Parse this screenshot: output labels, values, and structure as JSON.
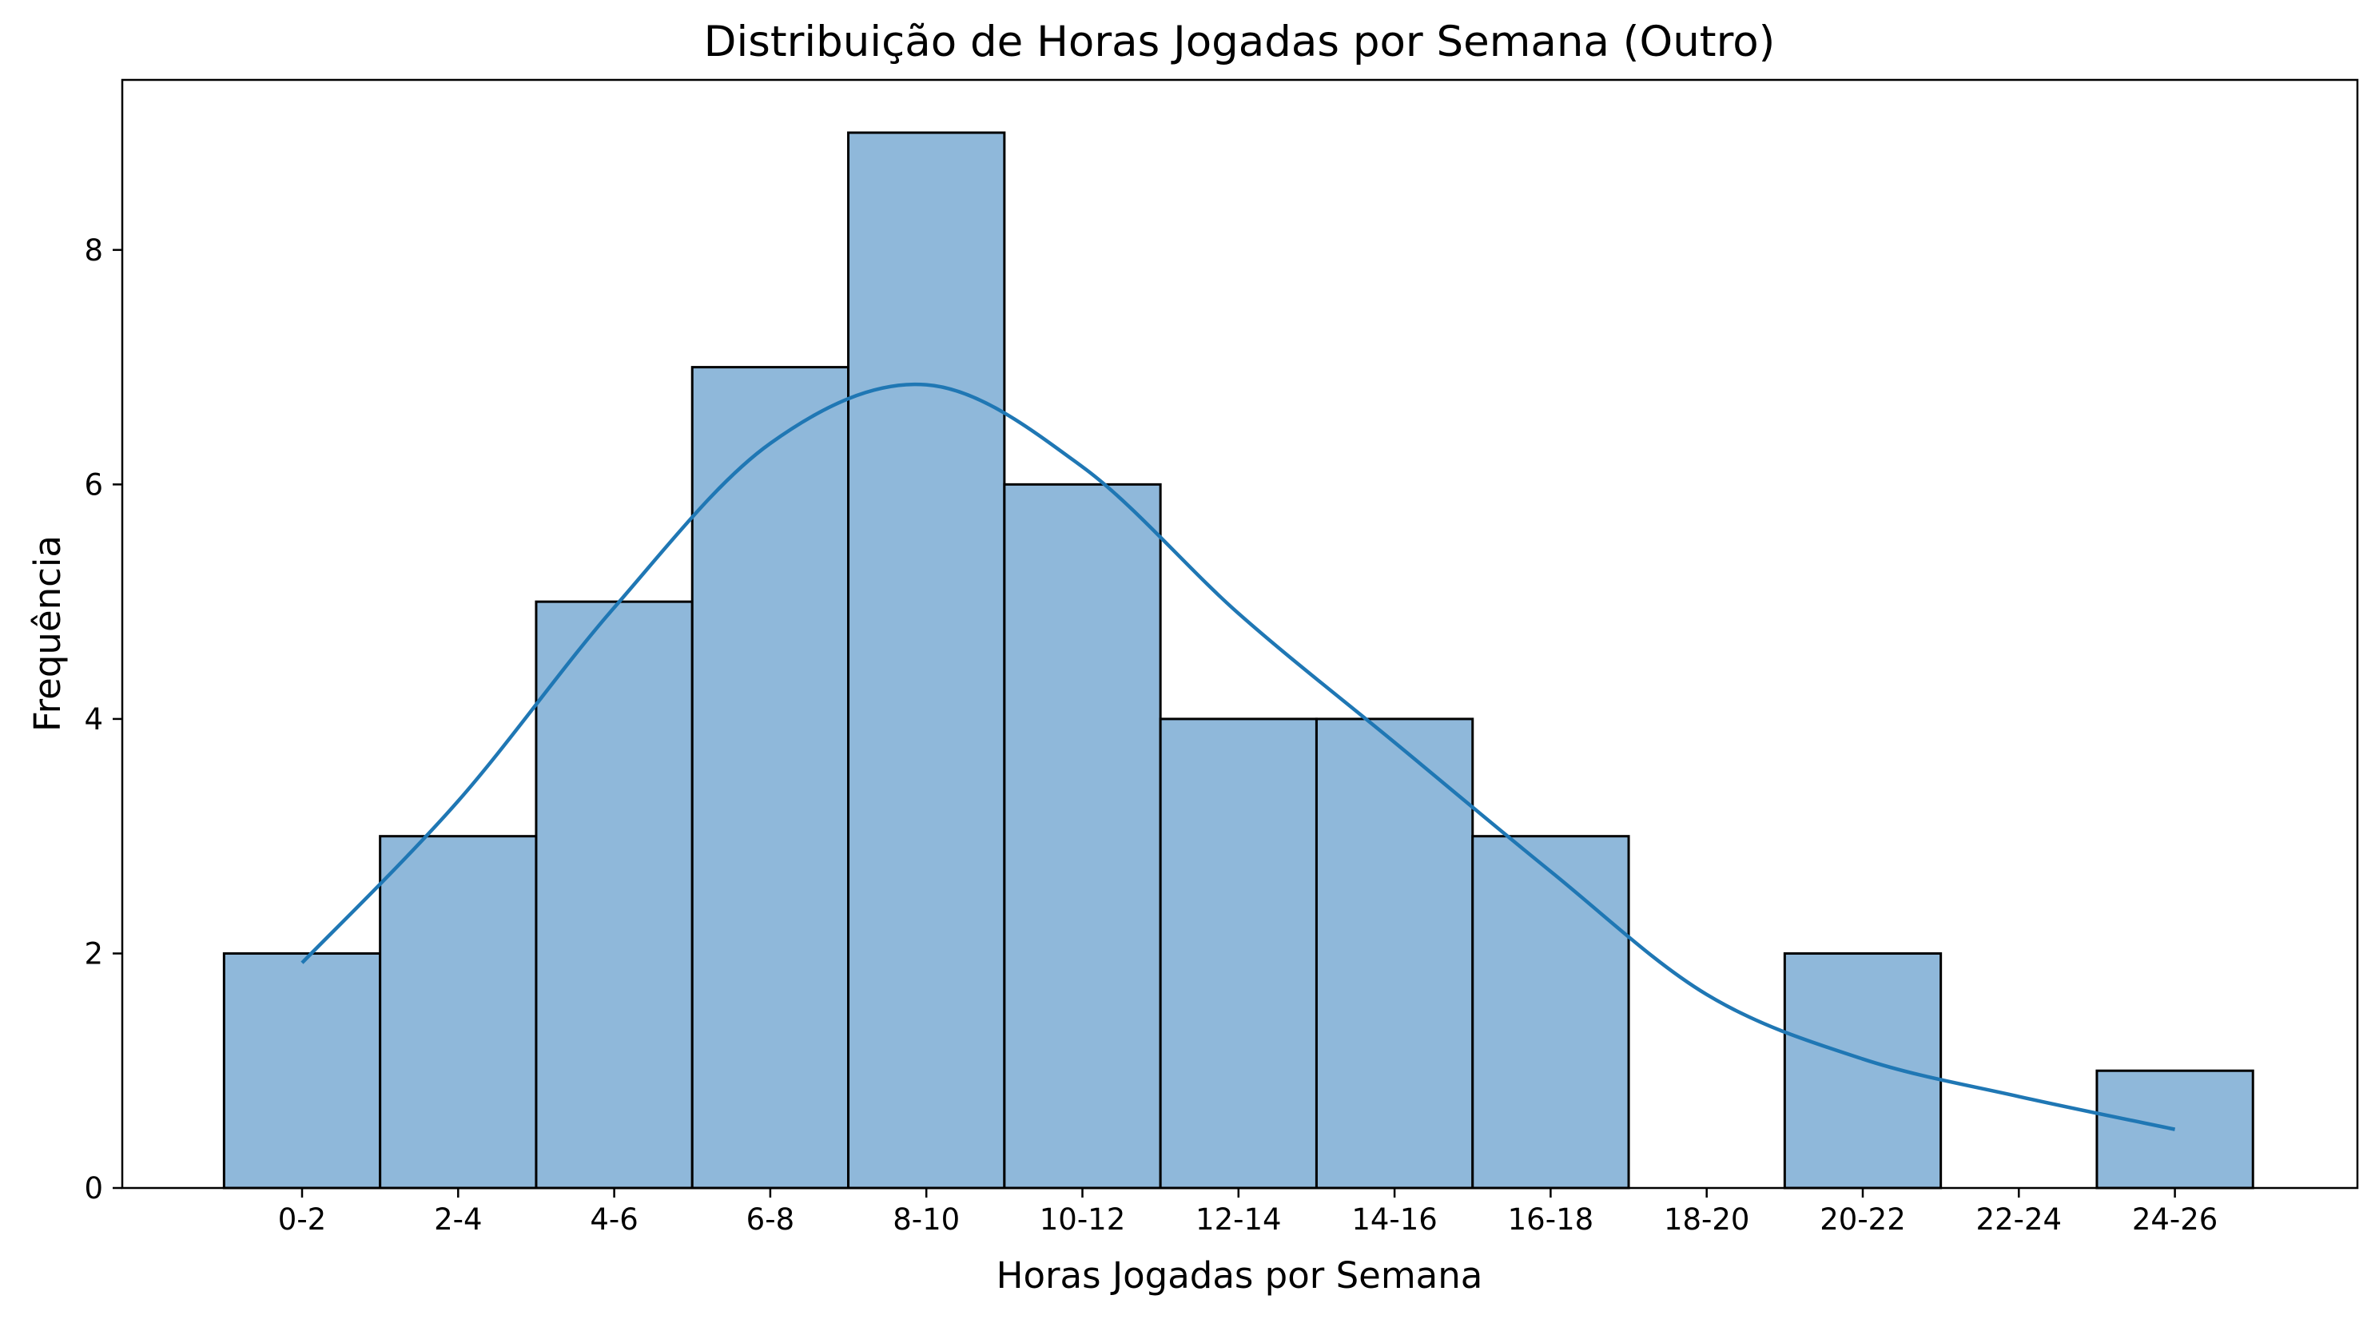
{
  "chart_data": {
    "type": "bar",
    "title": "Distribuição de Horas Jogadas por Semana (Outro)",
    "xlabel": "Horas Jogadas por Semana",
    "ylabel": "Frequência",
    "categories": [
      "0-2",
      "2-4",
      "4-6",
      "6-8",
      "8-10",
      "10-12",
      "12-14",
      "14-16",
      "16-18",
      "18-20",
      "20-22",
      "22-24",
      "24-26"
    ],
    "values": [
      2,
      3,
      5,
      7,
      9,
      6,
      4,
      4,
      3,
      0,
      2,
      0,
      1
    ],
    "kde": {
      "x": [
        0,
        1,
        2,
        3,
        4,
        5,
        6,
        7,
        8,
        9,
        10,
        11,
        12
      ],
      "y": [
        1.92,
        3.3,
        4.95,
        6.35,
        6.85,
        6.15,
        4.9,
        3.8,
        2.7,
        1.65,
        1.1,
        0.78,
        0.5
      ]
    },
    "yticks": [
      0,
      2,
      4,
      6,
      8
    ],
    "ylim": [
      0,
      9.45
    ],
    "grid": false,
    "colors": {
      "bar_fill": "#8fb8da",
      "bar_edge": "#000000",
      "kde_line": "#1f77b4"
    }
  }
}
